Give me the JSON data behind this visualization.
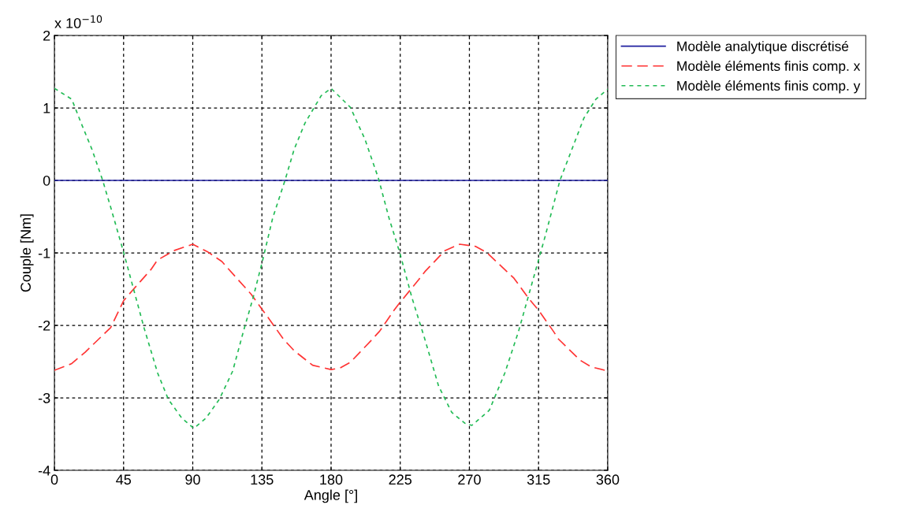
{
  "chart_data": {
    "type": "line",
    "xlabel": "Angle [°]",
    "ylabel": "Couple [Nm]",
    "annotations": [
      "x 10$^{−10}$"
    ],
    "xlim": [
      0,
      360
    ],
    "xticks": [
      0,
      45,
      90,
      135,
      180,
      225,
      270,
      315,
      360
    ],
    "ylim": [
      -4,
      2
    ],
    "yticks": [
      -4,
      -3,
      -2,
      -1,
      0,
      1,
      2
    ],
    "grid": true,
    "legend": "top right",
    "series": [
      {
        "name": "Modèle analytique discrétisé",
        "color": "#1f1f9f",
        "line_style": "solid",
        "x": [
          0,
          360
        ],
        "values": [
          0,
          0
        ]
      },
      {
        "name": "Modèle éléments finis comp. x",
        "color": "#ff3333",
        "line_style": "dashed",
        "x": [
          0,
          11,
          20,
          36.6,
          45,
          51.5,
          62.8,
          67,
          77.6,
          90,
          100,
          109,
          119.5,
          128,
          135.5,
          140,
          149,
          156,
          168,
          180,
          185.6,
          192.5,
          206,
          211.6,
          221,
          225,
          237,
          241,
          254,
          263.7,
          274,
          281,
          293,
          299,
          309,
          315,
          324.6,
          328,
          342,
          349,
          360
        ],
        "values": [
          -2.62,
          -2.53,
          -2.37,
          -2.03,
          -1.66,
          -1.5,
          -1.23,
          -1.1,
          -0.97,
          -0.88,
          -0.99,
          -1.12,
          -1.37,
          -1.57,
          -1.79,
          -1.92,
          -2.19,
          -2.35,
          -2.55,
          -2.61,
          -2.59,
          -2.51,
          -2.21,
          -2.08,
          -1.79,
          -1.68,
          -1.37,
          -1.26,
          -0.97,
          -0.88,
          -0.91,
          -0.99,
          -1.23,
          -1.35,
          -1.64,
          -1.79,
          -2.08,
          -2.19,
          -2.48,
          -2.57,
          -2.63
        ]
      },
      {
        "name": "Modèle éléments finis comp. y",
        "color": "#22bb55",
        "line_style": "dotted",
        "x": [
          0,
          11.3,
          17.4,
          24.4,
          31.4,
          36.6,
          45,
          51.5,
          58.4,
          67.2,
          74.1,
          82.9,
          90.7,
          98.6,
          107.3,
          116,
          123,
          129,
          135.5,
          142,
          150,
          156,
          163,
          168,
          173.6,
          180,
          192.5,
          202,
          210.8,
          217.7,
          224.6,
          232.5,
          241,
          250,
          258.5,
          267,
          271.6,
          283,
          293,
          302,
          310.6,
          319.3,
          328.9,
          336.7,
          344.5,
          352.3,
          360
        ],
        "values": [
          1.27,
          1.12,
          0.79,
          0.43,
          0,
          -0.37,
          -0.99,
          -1.5,
          -2.04,
          -2.66,
          -3.02,
          -3.28,
          -3.42,
          -3.28,
          -3.02,
          -2.63,
          -2.08,
          -1.64,
          -1.1,
          -0.52,
          0,
          0.43,
          0.79,
          0.97,
          1.17,
          1.27,
          1.01,
          0.57,
          0.03,
          -0.52,
          -0.99,
          -1.61,
          -2.19,
          -2.84,
          -3.2,
          -3.35,
          -3.38,
          -3.17,
          -2.66,
          -2.08,
          -1.43,
          -0.77,
          0,
          0.43,
          0.86,
          1.12,
          1.26
        ]
      }
    ]
  }
}
